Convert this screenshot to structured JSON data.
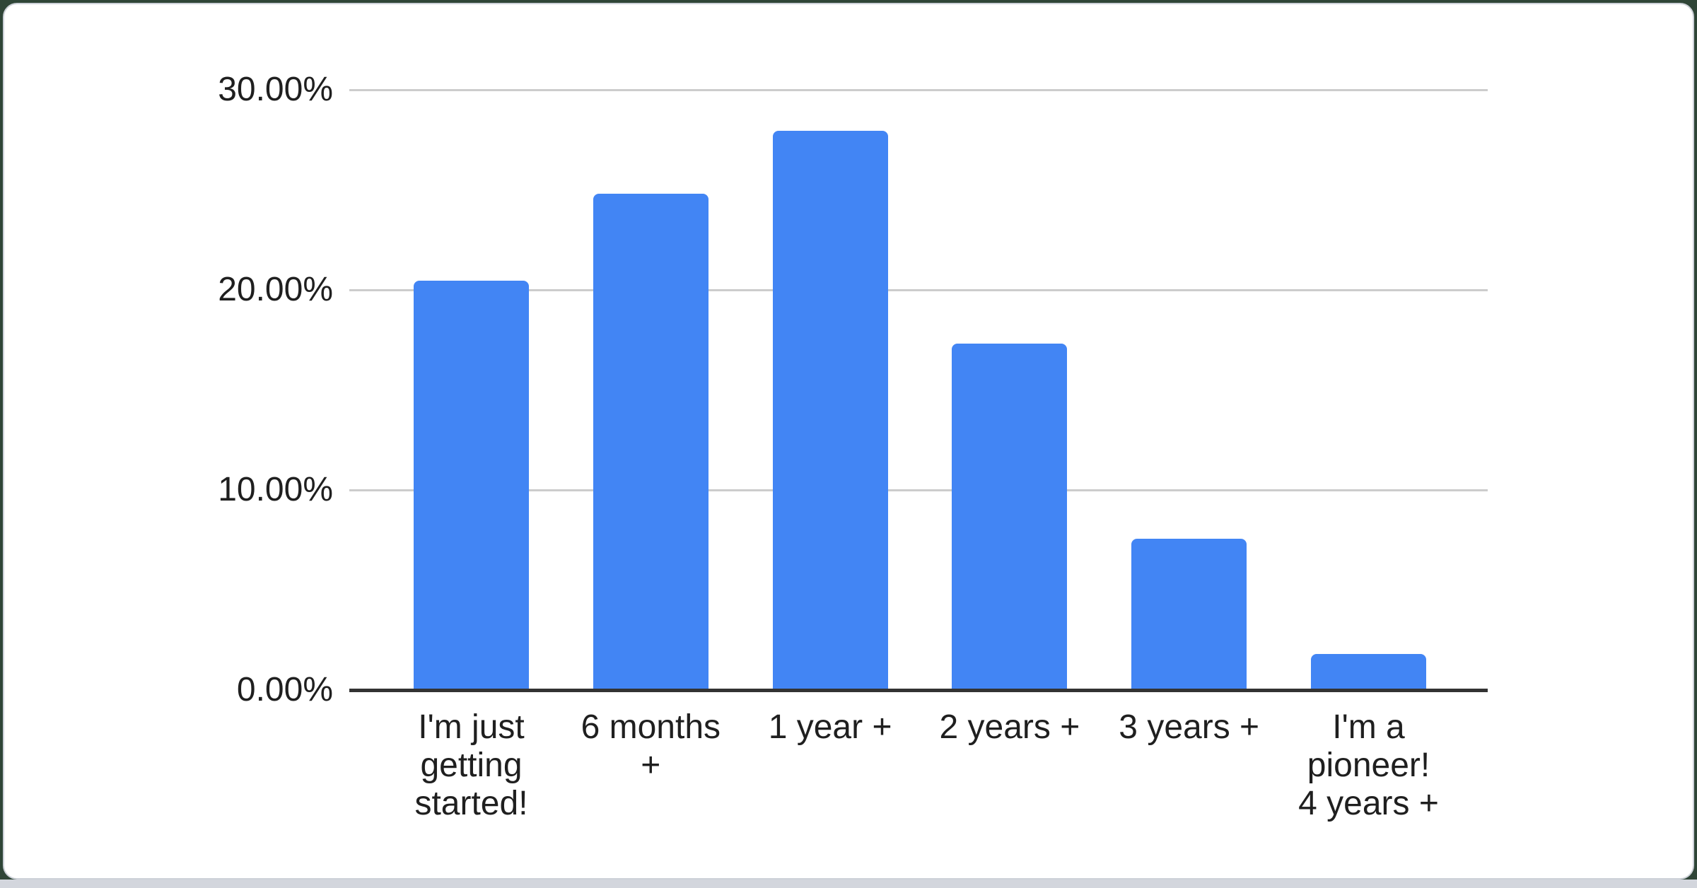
{
  "chart_data": {
    "type": "bar",
    "title": "",
    "xlabel": "",
    "ylabel": "",
    "categories": [
      "I'm just\ngetting\nstarted!",
      "6 months\n+",
      "1 year +",
      "2 years +",
      "3 years +",
      "I'm a\npioneer!\n4 years +"
    ],
    "values": [
      20.45,
      24.8,
      27.95,
      17.3,
      7.55,
      1.8
    ],
    "y_ticks": [
      "0.00%",
      "10.00%",
      "20.00%",
      "30.00%"
    ],
    "y_tick_values": [
      0,
      10,
      20,
      30
    ],
    "ylim": [
      0,
      30
    ],
    "grid": true,
    "legend_position": "none",
    "colors": {
      "bar": "#4285f4",
      "gridline": "#cccccc",
      "axis_line": "#333333",
      "text": "#1f1f1f",
      "card_background": "#ffffff",
      "card_border": "#cdd1d8",
      "page_background": "#2f4537",
      "bottom_strip": "#d3d6dd"
    }
  }
}
